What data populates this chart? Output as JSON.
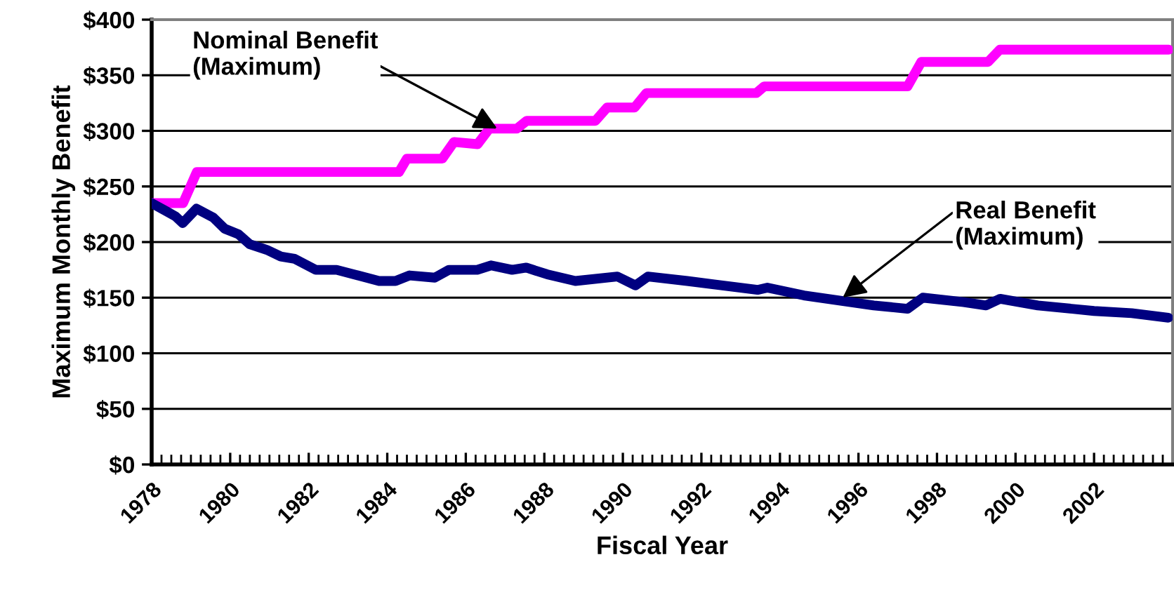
{
  "chart_data": {
    "type": "line",
    "xlabel": "Fiscal Year",
    "ylabel": "Maximum Monthly Benefit",
    "xlim": [
      1978,
      2004
    ],
    "xticks": [
      1978,
      1980,
      1982,
      1984,
      1986,
      1988,
      1990,
      1992,
      1994,
      1996,
      1998,
      2000,
      2002
    ],
    "ylim": [
      0,
      400
    ],
    "yticks": [
      {
        "value": 0,
        "label": "$0"
      },
      {
        "value": 50,
        "label": "$50"
      },
      {
        "value": 100,
        "label": "$100"
      },
      {
        "value": 150,
        "label": "$150"
      },
      {
        "value": 200,
        "label": "$200"
      },
      {
        "value": 250,
        "label": "$250"
      },
      {
        "value": 300,
        "label": "$300"
      },
      {
        "value": 350,
        "label": "$350"
      },
      {
        "value": 400,
        "label": "$400"
      }
    ],
    "grid": "y",
    "legend": false,
    "marker": "none",
    "line_style": "solid",
    "series": [
      {
        "color": "#ff00ff",
        "x": [
          1978,
          1978.8,
          1979.15,
          1984.3,
          1984.5,
          1985.4,
          1985.7,
          1986.3,
          1986.6,
          1987.3,
          1987.55,
          1989.3,
          1989.6,
          1990.3,
          1990.6,
          1993.4,
          1993.6,
          1997.25,
          1997.6,
          1999.3,
          1999.6,
          2003.9
        ],
        "values": [
          235,
          235,
          263,
          263,
          275,
          275,
          290,
          288,
          302,
          302,
          309,
          309,
          321,
          321,
          334,
          334,
          340,
          340,
          362,
          362,
          373,
          373
        ]
      },
      {
        "color": "#000080",
        "x": [
          1978,
          1978.36,
          1978.61,
          1978.79,
          1979.14,
          1979.57,
          1979.86,
          1980.21,
          1980.5,
          1980.93,
          1981.29,
          1981.64,
          1982.18,
          1982.71,
          1983.25,
          1983.79,
          1984.21,
          1984.57,
          1985.21,
          1985.57,
          1986.29,
          1986.64,
          1987.18,
          1987.54,
          1988.07,
          1988.79,
          1989.86,
          1990.32,
          1990.64,
          1991.64,
          1993.43,
          1993.68,
          1994.61,
          1996.39,
          1997.25,
          1997.64,
          1998.68,
          1999.25,
          1999.61,
          2000.57,
          2002.0,
          2002.96,
          2003.89
        ],
        "values": [
          235,
          228,
          223,
          217,
          230,
          222,
          212,
          207,
          198,
          193,
          187,
          185,
          175,
          175,
          170,
          165,
          165,
          170,
          168,
          175,
          175,
          179,
          175,
          177,
          171,
          165,
          169,
          161,
          169,
          165,
          157,
          159,
          152,
          143,
          140,
          150,
          146,
          143,
          149,
          143,
          138,
          136,
          132
        ]
      }
    ],
    "annotations": [
      {
        "text": "Nominal Benefit\n(Maximum)",
        "x": 1986.8,
        "y": 302
      },
      {
        "text": "Real Benefit\n(Maximum)",
        "x": 1995.6,
        "y": 150
      }
    ]
  }
}
